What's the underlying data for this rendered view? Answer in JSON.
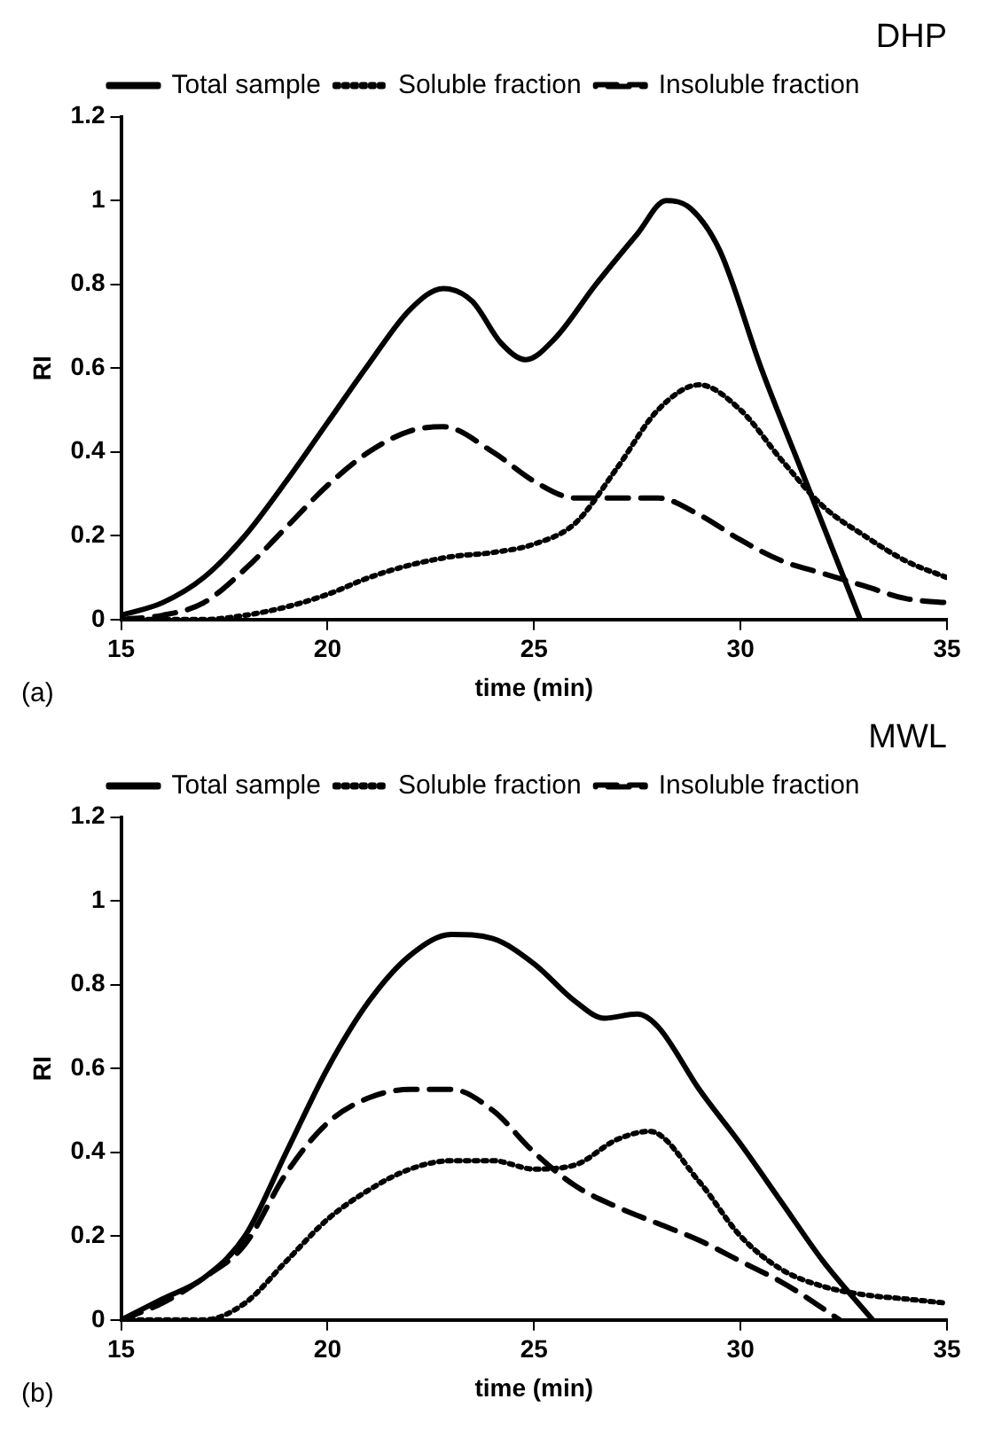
{
  "chart_data": [
    {
      "type": "line",
      "title": "DHP",
      "xlabel": "time (min)",
      "ylabel": "RI",
      "annotations": [
        "(a)"
      ],
      "xlim": [
        15,
        35
      ],
      "xticks": [
        15,
        20,
        25,
        30,
        35
      ],
      "ylim": [
        0,
        1.2
      ],
      "yticks": [
        0,
        0.2,
        0.4,
        0.6,
        0.8,
        1,
        1.2
      ],
      "grid": false,
      "legend": "top",
      "marker": "none",
      "series": [
        {
          "name": "Total sample",
          "color": "#000000",
          "line_style": "solid",
          "x": [
            15,
            16,
            17,
            18,
            19,
            20,
            21,
            22,
            22.8,
            23.5,
            24.2,
            24.8,
            25.5,
            26.5,
            27.5,
            28.2,
            28.8,
            29.5,
            30.5,
            31.5,
            32.3,
            32.9
          ],
          "values": [
            0.01,
            0.04,
            0.1,
            0.2,
            0.33,
            0.47,
            0.61,
            0.74,
            0.79,
            0.76,
            0.66,
            0.62,
            0.67,
            0.8,
            0.92,
            1,
            0.98,
            0.88,
            0.6,
            0.35,
            0.15,
            0
          ]
        },
        {
          "name": "Soluble fraction",
          "color": "#000000",
          "line_style": "dotted",
          "x": [
            15,
            17,
            18,
            19,
            20,
            21,
            22,
            23,
            24,
            25,
            26,
            27,
            28,
            29,
            30,
            31,
            32,
            33,
            34,
            35
          ],
          "values": [
            0,
            0,
            0.01,
            0.03,
            0.06,
            0.1,
            0.13,
            0.15,
            0.16,
            0.18,
            0.23,
            0.36,
            0.5,
            0.56,
            0.5,
            0.38,
            0.27,
            0.2,
            0.14,
            0.1
          ]
        },
        {
          "name": "Insoluble fraction",
          "color": "#000000",
          "line_style": "dashed",
          "x": [
            15,
            16,
            17,
            18,
            19,
            20,
            21,
            22,
            22.8,
            24,
            25,
            26,
            27,
            28,
            29,
            30,
            31,
            32,
            33,
            34,
            35
          ],
          "values": [
            0,
            0.01,
            0.04,
            0.12,
            0.22,
            0.32,
            0.4,
            0.45,
            0.46,
            0.4,
            0.33,
            0.29,
            0.29,
            0.29,
            0.25,
            0.19,
            0.14,
            0.11,
            0.08,
            0.05,
            0.04
          ]
        }
      ]
    },
    {
      "type": "line",
      "title": "MWL",
      "xlabel": "time (min)",
      "ylabel": "RI",
      "annotations": [
        "(b)"
      ],
      "xlim": [
        15,
        35
      ],
      "xticks": [
        15,
        20,
        25,
        30,
        35
      ],
      "ylim": [
        0,
        1.2
      ],
      "yticks": [
        0,
        0.2,
        0.4,
        0.6,
        0.8,
        1,
        1.2
      ],
      "grid": false,
      "legend": "top",
      "marker": "none",
      "series": [
        {
          "name": "Total sample",
          "color": "#000000",
          "line_style": "solid",
          "x": [
            15,
            16,
            17,
            18,
            19,
            20,
            21,
            22,
            23,
            24,
            25,
            26,
            26.7,
            27.5,
            28,
            29,
            30,
            31,
            32,
            33.2
          ],
          "values": [
            0,
            0.05,
            0.1,
            0.2,
            0.4,
            0.6,
            0.76,
            0.87,
            0.92,
            0.91,
            0.85,
            0.76,
            0.72,
            0.73,
            0.7,
            0.55,
            0.42,
            0.28,
            0.14,
            0
          ]
        },
        {
          "name": "Soluble fraction",
          "color": "#000000",
          "line_style": "dotted",
          "x": [
            15,
            17,
            18,
            19,
            20,
            21,
            22,
            23,
            24,
            25,
            26,
            27,
            27.8,
            29,
            30,
            31,
            32,
            33,
            34,
            35
          ],
          "values": [
            0,
            0,
            0.04,
            0.14,
            0.24,
            0.31,
            0.36,
            0.38,
            0.38,
            0.36,
            0.37,
            0.43,
            0.45,
            0.33,
            0.2,
            0.12,
            0.08,
            0.06,
            0.05,
            0.04
          ]
        },
        {
          "name": "Insoluble fraction",
          "color": "#000000",
          "line_style": "dashed",
          "x": [
            15,
            16,
            17,
            18,
            19,
            20,
            21,
            22,
            23,
            24,
            25,
            26,
            27,
            28,
            29,
            30,
            31,
            31.5,
            32.4
          ],
          "values": [
            0,
            0.04,
            0.1,
            0.18,
            0.35,
            0.47,
            0.53,
            0.55,
            0.55,
            0.5,
            0.4,
            0.32,
            0.27,
            0.23,
            0.19,
            0.14,
            0.09,
            0.06,
            0
          ]
        }
      ]
    }
  ]
}
